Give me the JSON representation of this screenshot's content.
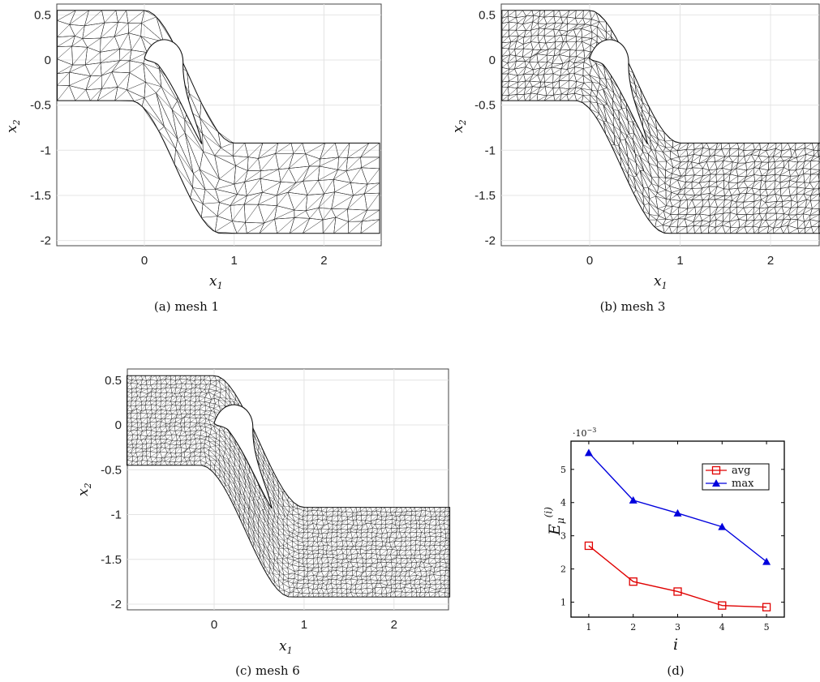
{
  "panels": [
    {
      "caption": "(a) mesh 1",
      "x_ticks": [
        "0",
        "1",
        "2"
      ],
      "y_ticks": [
        "0.5",
        "0",
        "-0.5",
        "-1",
        "-1.5",
        "-2"
      ],
      "xlabel_base": "x",
      "xlabel_sub": "1",
      "ylabel_base": "x",
      "ylabel_sub": "2",
      "density": 1
    },
    {
      "caption": "(b) mesh 3",
      "x_ticks": [
        "0",
        "1",
        "2"
      ],
      "y_ticks": [
        "0.5",
        "0",
        "-0.5",
        "-1",
        "-1.5",
        "-2"
      ],
      "xlabel_base": "x",
      "xlabel_sub": "1",
      "ylabel_base": "x",
      "ylabel_sub": "2",
      "density": 2
    },
    {
      "caption": "(c) mesh 6",
      "x_ticks": [
        "0",
        "1",
        "2"
      ],
      "y_ticks": [
        "0.5",
        "0",
        "-0.5",
        "-1",
        "-1.5",
        "-2"
      ],
      "xlabel_base": "x",
      "xlabel_sub": "1",
      "ylabel_base": "x",
      "ylabel_sub": "2",
      "density": 3
    }
  ],
  "plot_d": {
    "caption": "(d)",
    "scale_label": "·10",
    "scale_exp": "−3",
    "ylabel_base": "E",
    "ylabel_sub": "μ",
    "ylabel_sup": "(i)",
    "xlabel": "i",
    "x_ticks": [
      "1",
      "2",
      "3",
      "4",
      "5"
    ],
    "y_ticks": [
      "1",
      "2",
      "3",
      "4",
      "5"
    ]
  },
  "chart_data": [
    {
      "type": "line",
      "x": [
        1,
        2,
        3,
        4,
        5
      ],
      "series": [
        {
          "name": "avg",
          "values": [
            2.7,
            1.62,
            1.32,
            0.9,
            0.85
          ],
          "color": "#e00000",
          "marker": "square"
        },
        {
          "name": "max",
          "values": [
            5.5,
            4.07,
            3.68,
            3.27,
            2.22
          ],
          "color": "#0000dd",
          "marker": "triangle"
        }
      ],
      "xlabel": "i",
      "ylabel": "E_μ^(i)",
      "xlim": [
        0.6,
        5.4
      ],
      "ylim": [
        0.55,
        5.85
      ],
      "y_scale_factor": "10^-3",
      "legend": "top-right",
      "grid": false
    }
  ]
}
